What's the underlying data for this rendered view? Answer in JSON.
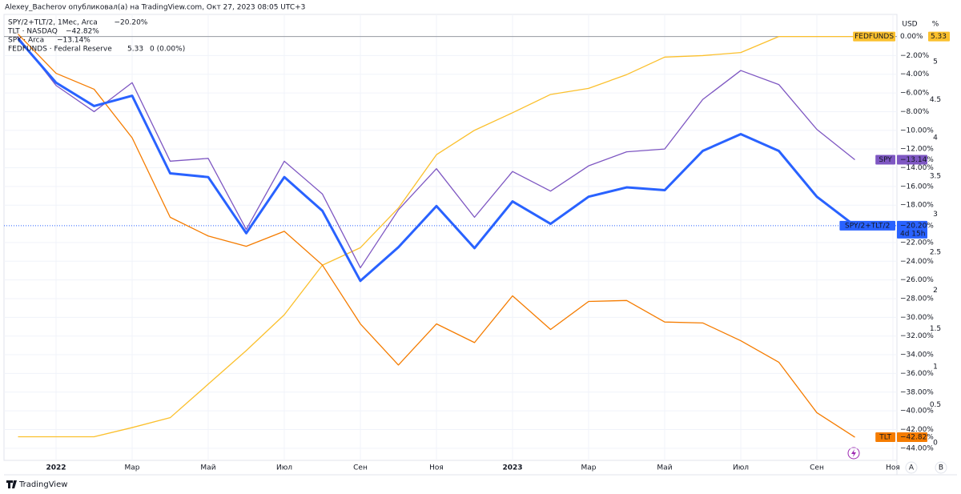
{
  "header": {
    "text": "Alexey_Bacherov опубликовал(а) на TradingView.com, Окт 27, 2023 08:05 UTC+3"
  },
  "footer": {
    "brand": "TradingView"
  },
  "chart_data": {
    "type": "line",
    "units": [
      "USD",
      "%"
    ],
    "scale_buttons": [
      "A",
      "B"
    ],
    "categories": [
      null,
      "2022",
      null,
      "Мар",
      null,
      "Май",
      null,
      "Июл",
      null,
      "Сен",
      null,
      "Ноя",
      null,
      "2023",
      null,
      "Мар",
      null,
      "Май",
      null,
      "Июл",
      null,
      "Сен",
      null,
      "Ноя"
    ],
    "ylim": [
      -45.3,
      2.4
    ],
    "yticks": [
      {
        "value": -2,
        "label": "−2.00%"
      },
      {
        "value": -4,
        "label": "−4.00%"
      },
      {
        "value": -6,
        "label": "−6.00%"
      },
      {
        "value": -8,
        "label": "−8.00%"
      },
      {
        "value": -10,
        "label": "−10.00%"
      },
      {
        "value": -12,
        "label": "−12.00%"
      },
      {
        "value": -14,
        "label": "−14.00%"
      },
      {
        "value": -16,
        "label": "−16.00%"
      },
      {
        "value": -18,
        "label": "−18.00%"
      },
      {
        "value": -22,
        "label": "−22.00%"
      },
      {
        "value": -24,
        "label": "−24.00%"
      },
      {
        "value": -26,
        "label": "−26.00%"
      },
      {
        "value": -28,
        "label": "−28.00%"
      },
      {
        "value": -30,
        "label": "−30.00%"
      },
      {
        "value": -32,
        "label": "−32.00%"
      },
      {
        "value": -34,
        "label": "−34.00%"
      },
      {
        "value": -36,
        "label": "−36.00%"
      },
      {
        "value": -38,
        "label": "−38.00%"
      },
      {
        "value": -40,
        "label": "−40.00%"
      },
      {
        "value": -42,
        "label": "−42.00%"
      },
      {
        "value": -44,
        "label": "−44.00%"
      }
    ],
    "y2lim": [
      -0.23,
      5.62
    ],
    "y2ticks": [
      0,
      0.5,
      1,
      1.5,
      2,
      2.5,
      3,
      3.5,
      4,
      4.5,
      5
    ],
    "grid": true,
    "series": [
      {
        "name": "SPY/2+TLT/2, 1Мес, Arca",
        "tag": "SPY/2+TLT/2",
        "legend_value": "−20.20%",
        "tag_value": "−20.20%",
        "countdown": "4d 15h",
        "color": "#2962ff",
        "width": 3,
        "values": [
          -0.2,
          -4.9,
          -7.4,
          -6.3,
          -14.6,
          -15.0,
          -21.0,
          -15.0,
          -18.6,
          -26.1,
          -22.5,
          -18.1,
          -22.6,
          -17.6,
          -20.0,
          -17.1,
          -16.1,
          -16.4,
          -12.2,
          -10.4,
          -12.2,
          -17.1,
          -20.2,
          null
        ]
      },
      {
        "name": "TLT · NASDAQ",
        "tag": "TLT",
        "legend_value": "−42.82%",
        "tag_value": "−42.82%",
        "color": "#f57c00",
        "width": 1.3,
        "values": [
          0.3,
          -3.9,
          -5.6,
          -10.8,
          -19.3,
          -21.3,
          -22.4,
          -20.8,
          -24.4,
          -30.7,
          -35.1,
          -30.7,
          -32.7,
          -27.7,
          -31.3,
          -28.3,
          -28.2,
          -30.5,
          -30.6,
          -32.5,
          -34.8,
          -40.2,
          -42.82,
          null
        ]
      },
      {
        "name": "SPY · Arca",
        "tag": "SPY",
        "legend_value": "−13.14%",
        "tag_value": "−13.14%",
        "color": "#7e57c2",
        "width": 1.3,
        "values": [
          0,
          -5.2,
          -8.0,
          -4.9,
          -13.3,
          -13.0,
          -20.6,
          -13.3,
          -16.8,
          -24.7,
          -18.5,
          -14.1,
          -19.3,
          -14.4,
          -16.5,
          -13.8,
          -12.3,
          -12.0,
          -6.7,
          -3.6,
          -5.1,
          -9.9,
          -13.14,
          null
        ]
      },
      {
        "name": "FEDFUNDS · Federal Reserve",
        "tag": "FEDFUNDS",
        "legend_change": "0 (0.00%)",
        "tag_value": "0.00%",
        "color": "#fbc02d",
        "width": 1.3,
        "axis": "y2",
        "values": [
          0.08,
          0.08,
          0.08,
          0.2,
          0.33,
          0.77,
          1.21,
          1.68,
          2.33,
          2.56,
          3.08,
          3.78,
          4.1,
          4.33,
          4.57,
          4.65,
          4.83,
          5.06,
          5.08,
          5.12,
          5.33,
          5.33,
          5.33,
          null
        ]
      }
    ]
  }
}
